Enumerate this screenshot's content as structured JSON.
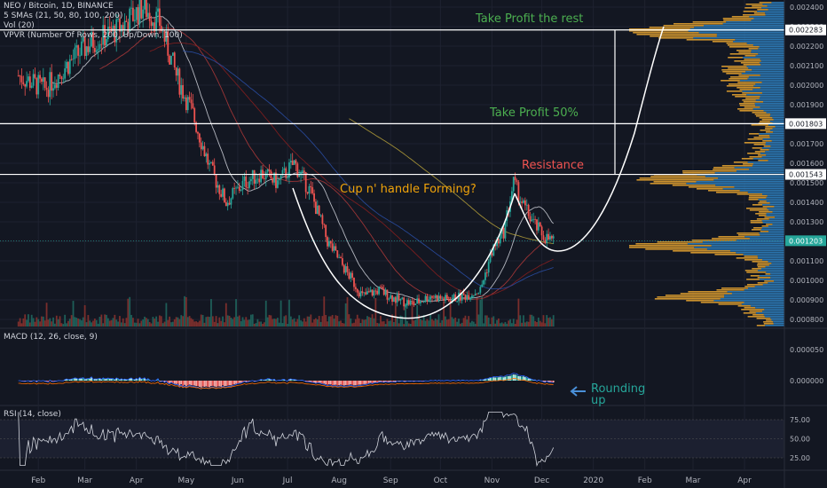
{
  "header": {
    "symbol_line": "NEO / Bitcoin, 1D, BINANCE",
    "sma_line": "5 SMAs (21, 50, 80, 100, 200)",
    "vol_line": "Vol (20)",
    "vpvr_line": "VPVR (Number Of Rows, 200, Up/Down, 100)"
  },
  "annotations": {
    "take_profit_rest": "Take Profit the rest",
    "take_profit_half": "Take Profit 50%",
    "resistance": "Resistance",
    "cup_handle": "Cup n' handle Forming?",
    "rounding_line1": "Rounding",
    "rounding_line2": "up"
  },
  "macd": {
    "label": "MACD (12, 26, close, 9)"
  },
  "rsi": {
    "label": "RSI (14, close)"
  },
  "colors": {
    "background": "#131722",
    "up": "#26a69a",
    "down": "#ef5350",
    "grid": "#1e2230",
    "text": "#b2b5be",
    "annotation_green": "#4caf50",
    "annotation_red": "#ef5350",
    "annotation_orange": "#f0a30a",
    "vpvr_up": "#2f7fbf",
    "vpvr_down": "#e0a030",
    "arrow_blue": "#4a90d9"
  },
  "chart_data": {
    "type": "candlestick",
    "x_ticks": [
      "Feb",
      "Mar",
      "Apr",
      "May",
      "Jun",
      "Jul",
      "Aug",
      "Sep",
      "Oct",
      "Nov",
      "Dec",
      "2020",
      "Feb",
      "Mar",
      "Apr"
    ],
    "y_ticks": [
      "0.002400",
      "0.002300",
      "0.002200",
      "0.002100",
      "0.002000",
      "0.001900",
      "0.001800",
      "0.001700",
      "0.001600",
      "0.001500",
      "0.001400",
      "0.001300",
      "0.001200",
      "0.001100",
      "0.001000",
      "0.000900",
      "0.000800"
    ],
    "ylim": [
      0.00075,
      0.00245
    ],
    "price_labels": [
      {
        "value": 0.002283,
        "text": "0.002283"
      },
      {
        "value": 0.001803,
        "text": "0.001803"
      },
      {
        "value": 0.001543,
        "text": "0.001543"
      },
      {
        "value": 0.001203,
        "text": "0.001203"
      }
    ],
    "horizontal_levels": [
      0.002283,
      0.001803,
      0.001543
    ],
    "close_path": [
      [
        "2019-01-20",
        0.00205
      ],
      [
        "2019-02-05",
        0.00198
      ],
      [
        "2019-02-20",
        0.00212
      ],
      [
        "2019-03-05",
        0.00222
      ],
      [
        "2019-03-20",
        0.00228
      ],
      [
        "2019-04-05",
        0.0024
      ],
      [
        "2019-04-15",
        0.00232
      ],
      [
        "2019-04-25",
        0.00205
      ],
      [
        "2019-05-05",
        0.00185
      ],
      [
        "2019-05-15",
        0.00158
      ],
      [
        "2019-05-25",
        0.0014
      ],
      [
        "2019-06-05",
        0.0015
      ],
      [
        "2019-06-15",
        0.00155
      ],
      [
        "2019-06-25",
        0.0015
      ],
      [
        "2019-07-05",
        0.0016
      ],
      [
        "2019-07-15",
        0.00145
      ],
      [
        "2019-07-25",
        0.0012
      ],
      [
        "2019-08-05",
        0.00105
      ],
      [
        "2019-08-15",
        0.00092
      ],
      [
        "2019-08-25",
        0.00095
      ],
      [
        "2019-09-05",
        0.0009
      ],
      [
        "2019-09-15",
        0.00088
      ],
      [
        "2019-09-25",
        0.00092
      ],
      [
        "2019-10-05",
        0.0009
      ],
      [
        "2019-10-15",
        0.00092
      ],
      [
        "2019-10-25",
        0.00095
      ],
      [
        "2019-11-01",
        0.00115
      ],
      [
        "2019-11-08",
        0.00125
      ],
      [
        "2019-11-14",
        0.0015
      ],
      [
        "2019-11-20",
        0.00138
      ],
      [
        "2019-11-27",
        0.00128
      ],
      [
        "2019-12-03",
        0.00122
      ],
      [
        "2019-12-08",
        0.0012
      ]
    ],
    "rsi_levels": [
      75,
      50,
      25
    ],
    "macd_ticks": [
      "0.000050",
      "0.000000"
    ]
  }
}
